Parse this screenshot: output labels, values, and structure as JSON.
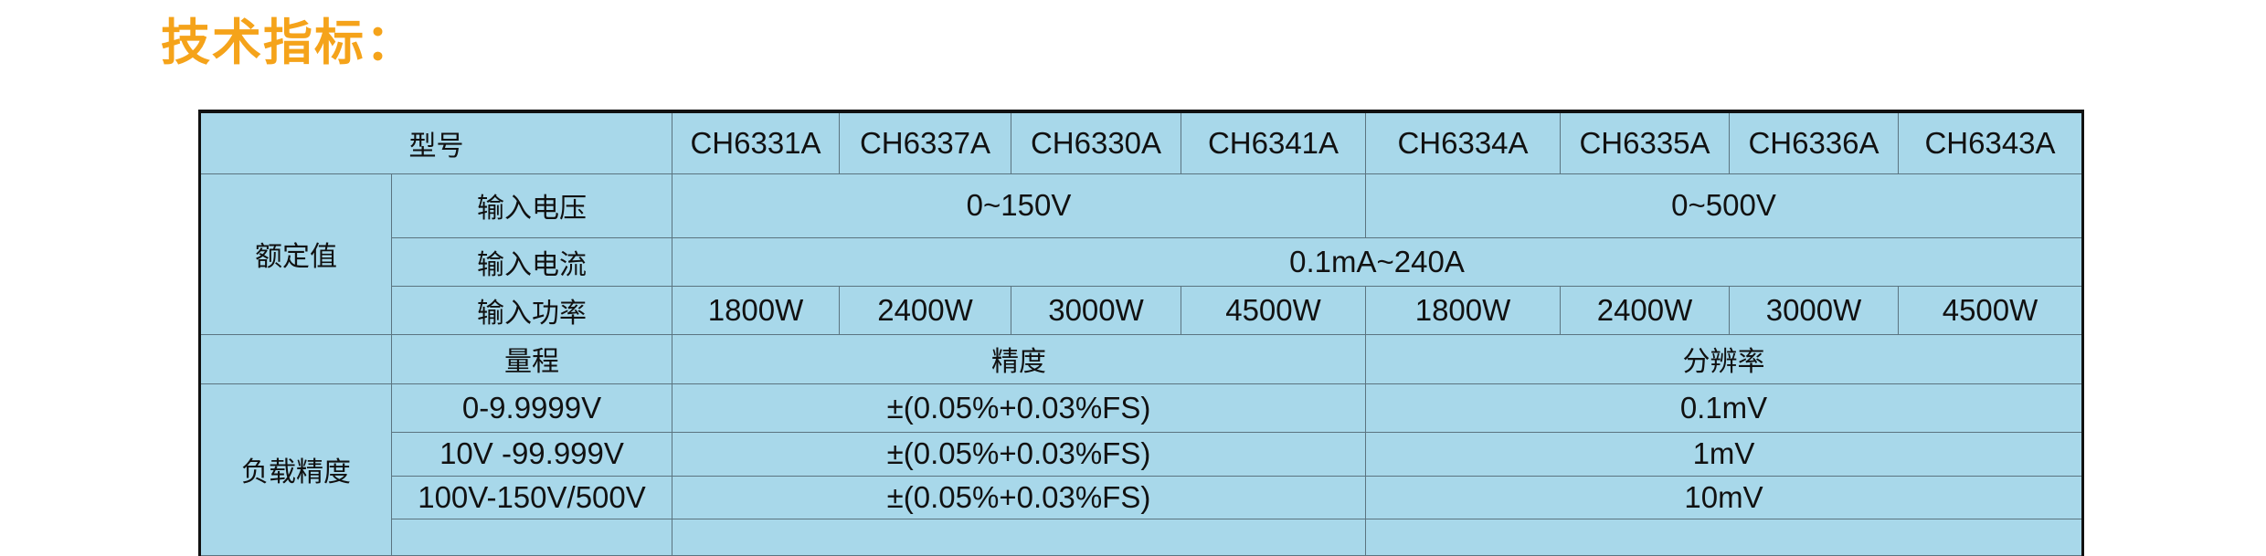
{
  "title": "技术指标：",
  "colors": {
    "title": "#f5a31a",
    "table_bg": "#a8d8ea",
    "border": "#5b7480"
  },
  "table": {
    "model_label": "型号",
    "models": [
      "CH6331A",
      "CH6337A",
      "CH6330A",
      "CH6341A",
      "CH6334A",
      "CH6335A",
      "CH6336A",
      "CH6343A"
    ],
    "rated": {
      "label": "额定值",
      "voltage_label": "输入电压",
      "voltage_values": [
        "0~150V",
        "0~500V"
      ],
      "current_label": "输入电流",
      "current_value": "0.1mA~240A",
      "power_label": "输入功率",
      "power_values": [
        "1800W",
        "2400W",
        "3000W",
        "4500W",
        "1800W",
        "2400W",
        "3000W",
        "4500W"
      ]
    },
    "accuracy_header": {
      "range": "量程",
      "accuracy": "精度",
      "resolution": "分辨率"
    },
    "load_accuracy": {
      "label": "负载精度",
      "rows": [
        {
          "range": "0-9.9999V",
          "accuracy": "±(0.05%+0.03%FS)",
          "resolution": "0.1mV"
        },
        {
          "range": "10V -99.999V",
          "accuracy": "±(0.05%+0.03%FS)",
          "resolution": "1mV"
        },
        {
          "range": "100V-150V/500V",
          "accuracy": "±(0.05%+0.03%FS)",
          "resolution": "10mV"
        }
      ]
    }
  }
}
